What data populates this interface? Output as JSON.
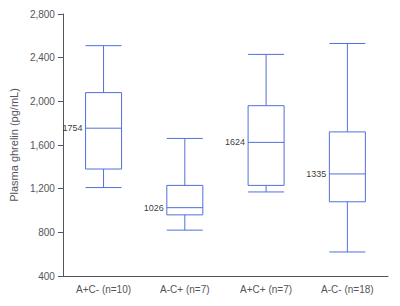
{
  "chart_data": {
    "type": "boxplot",
    "categories": [
      "A+C- (n=10)",
      "A-C+ (n=7)",
      "A+C+ (n=7)",
      "A-C- (n=18)"
    ],
    "ylabel": "Plasma ghrelin (pg/mL)",
    "values": [
      {
        "whisker_low": 1210,
        "q1": 1380,
        "median": 1754,
        "q3": 2080,
        "whisker_high": 2510
      },
      {
        "whisker_low": 820,
        "q1": 960,
        "median": 1026,
        "q3": 1230,
        "whisker_high": 1660
      },
      {
        "whisker_low": 1170,
        "q1": 1230,
        "median": 1624,
        "q3": 1960,
        "whisker_high": 2430
      },
      {
        "whisker_low": 620,
        "q1": 1080,
        "median": 1335,
        "q3": 1720,
        "whisker_high": 2530
      }
    ],
    "data_labels": true,
    "ylim": [
      400,
      2800
    ],
    "yticks": [
      400,
      800,
      1200,
      1600,
      2000,
      2400,
      2800
    ],
    "grid": false
  }
}
